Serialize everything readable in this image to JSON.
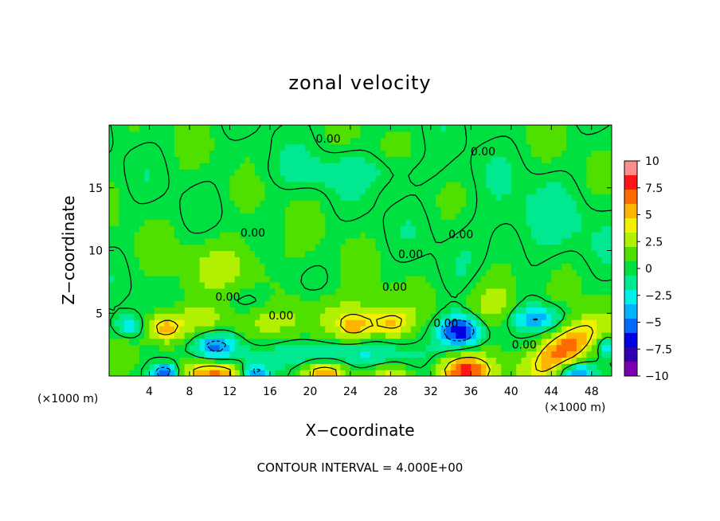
{
  "chart_data": {
    "type": "heatmap",
    "title": "zonal velocity",
    "xlabel": "X−coordinate",
    "ylabel": "Z−coordinate",
    "x_unit_left": "(×1000 m)",
    "x_unit_right": "(×1000 m)",
    "xlim": [
      0,
      50
    ],
    "ylim": [
      0,
      20
    ],
    "xticks": [
      4,
      8,
      12,
      16,
      20,
      24,
      28,
      32,
      36,
      40,
      44,
      48
    ],
    "xtick_labels": [
      "4",
      "8",
      "12",
      "16",
      "20",
      "24",
      "28",
      "32",
      "36",
      "40",
      "44",
      "48"
    ],
    "yticks": [
      5,
      10,
      15
    ],
    "ytick_labels": [
      "5",
      "10",
      "15"
    ],
    "contour_interval_note": "CONTOUR INTERVAL = 4.000E+00",
    "contour_labels": [
      {
        "text": "0.00",
        "x": 21.8,
        "y": 18.6
      },
      {
        "text": "0.00",
        "x": 37.2,
        "y": 17.6
      },
      {
        "text": "0.00",
        "x": 35.0,
        "y": 11.0
      },
      {
        "text": "0.00",
        "x": 14.3,
        "y": 11.1
      },
      {
        "text": "0.00",
        "x": 30.0,
        "y": 9.4
      },
      {
        "text": "0.00",
        "x": 11.8,
        "y": 6.0
      },
      {
        "text": "0.00",
        "x": 28.4,
        "y": 6.8
      },
      {
        "text": "0.00",
        "x": 17.1,
        "y": 4.5
      },
      {
        "text": "0.00",
        "x": 33.5,
        "y": 3.9
      },
      {
        "text": "0.00",
        "x": 41.3,
        "y": 2.2
      }
    ],
    "colorbar": {
      "range": [
        -10,
        10
      ],
      "tick_labels": [
        "10",
        "7.5",
        "5",
        "2.5",
        "0",
        "−2.5",
        "−5",
        "−7.5",
        "−10"
      ],
      "tick_values": [
        10,
        7.5,
        5,
        2.5,
        0,
        -2.5,
        -5,
        -7.5,
        -10
      ],
      "colors": [
        "#ff8d8d",
        "#ff1515",
        "#ff6a00",
        "#ffb400",
        "#f0f000",
        "#b0f000",
        "#50e000",
        "#00e040",
        "#00e890",
        "#00f0e8",
        "#00b4ff",
        "#006aff",
        "#0000e0",
        "#3000b0",
        "#7a00b0"
      ]
    },
    "background_level": 0.3,
    "features": [
      {
        "x": 45.5,
        "y": 2.3,
        "sx": 2.6,
        "sy": 1.1,
        "v": 7.5,
        "tilt": 0.5
      },
      {
        "x": 35.5,
        "y": 0.4,
        "sx": 2.0,
        "sy": 0.9,
        "v": 7.2
      },
      {
        "x": 10.5,
        "y": 0.3,
        "sx": 2.0,
        "sy": 0.7,
        "v": 6.8
      },
      {
        "x": 21.5,
        "y": 0.3,
        "sx": 1.6,
        "sy": 0.6,
        "v": 4.8
      },
      {
        "x": 28.0,
        "y": 0.2,
        "sx": 1.5,
        "sy": 0.5,
        "v": 3.2
      },
      {
        "x": 5.5,
        "y": 3.8,
        "sx": 1.3,
        "sy": 0.8,
        "v": 5.0
      },
      {
        "x": 24.5,
        "y": 3.9,
        "sx": 1.4,
        "sy": 0.9,
        "v": 4.4
      },
      {
        "x": 28.0,
        "y": 4.2,
        "sx": 1.4,
        "sy": 0.8,
        "v": 3.8
      },
      {
        "x": 38.5,
        "y": 5.8,
        "sx": 1.8,
        "sy": 1.6,
        "v": 3.0
      },
      {
        "x": 12.0,
        "y": 9.0,
        "sx": 3.0,
        "sy": 1.5,
        "v": 2.2
      },
      {
        "x": 20.0,
        "y": 5.0,
        "sx": 6.0,
        "sy": 1.2,
        "v": 2.2
      },
      {
        "x": 8.5,
        "y": 4.5,
        "sx": 2.5,
        "sy": 1.0,
        "v": 2.0
      },
      {
        "x": 35.0,
        "y": 3.6,
        "sx": 1.6,
        "sy": 0.9,
        "v": -8.0
      },
      {
        "x": 5.5,
        "y": 0.3,
        "sx": 1.0,
        "sy": 0.5,
        "v": -7.0
      },
      {
        "x": 14.5,
        "y": 0.3,
        "sx": 0.9,
        "sy": 0.5,
        "v": -5.5
      },
      {
        "x": 46.5,
        "y": 0.3,
        "sx": 1.2,
        "sy": 0.5,
        "v": -5.0
      },
      {
        "x": 10.5,
        "y": 2.5,
        "sx": 1.4,
        "sy": 0.7,
        "v": -4.5
      },
      {
        "x": 2.0,
        "y": 4.0,
        "sx": 1.0,
        "sy": 0.6,
        "v": -3.8
      },
      {
        "x": 42.5,
        "y": 4.6,
        "sx": 1.8,
        "sy": 0.7,
        "v": -4.2
      },
      {
        "x": 49.5,
        "y": 2.4,
        "sx": 0.7,
        "sy": 0.6,
        "v": -4.0
      },
      {
        "x": 21.0,
        "y": 1.8,
        "sx": 6.0,
        "sy": 0.8,
        "v": -2.5
      },
      {
        "x": 14.0,
        "y": 5.8,
        "sx": 2.5,
        "sy": 0.8,
        "v": -2.0
      },
      {
        "x": 24.0,
        "y": 16.3,
        "sx": 6.0,
        "sy": 1.0,
        "v": -1.4
      },
      {
        "x": 42.0,
        "y": 12.0,
        "sx": 5.0,
        "sy": 2.5,
        "v": -1.2
      }
    ]
  }
}
